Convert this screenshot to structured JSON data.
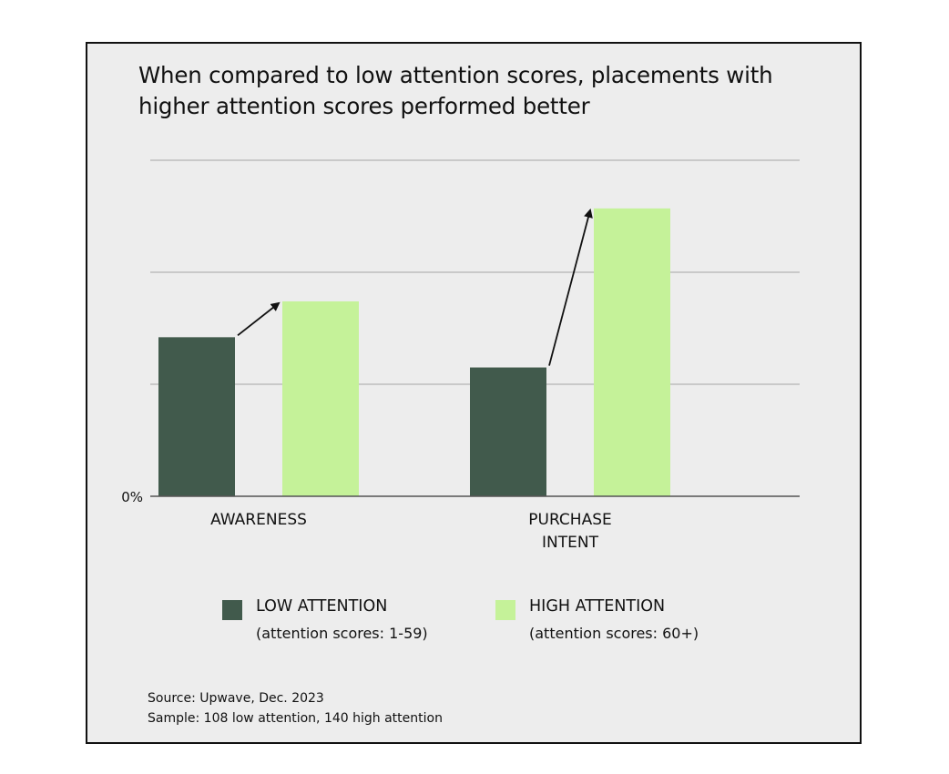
{
  "chart_data": {
    "type": "bar",
    "title": "When compared to low attention scores, placements with higher attention scores performed better",
    "categories": [
      [
        "AWARENESS"
      ],
      [
        "PURCHASE",
        "INTENT"
      ]
    ],
    "series": [
      {
        "name": "LOW ATTENTION",
        "detail": "(attention scores: 1-59)",
        "color": "#415a4c",
        "values": [
          1.42,
          1.15
        ]
      },
      {
        "name": "HIGH ATTENTION",
        "detail": "(attention scores: 60+)",
        "color": "#c5f299",
        "values": [
          1.74,
          2.57
        ]
      }
    ],
    "ylim": [
      0,
      3
    ],
    "gridlines": [
      1,
      2,
      3
    ],
    "y_tick_labels": [
      {
        "value": 0,
        "label": "0%"
      }
    ],
    "arrows": [
      {
        "category": 0,
        "from_series": 0,
        "to_series": 1
      },
      {
        "category": 1,
        "from_series": 0,
        "to_series": 1
      }
    ],
    "legend_position": "bottom",
    "grid": true
  },
  "footer": {
    "source": "Source: Upwave, Dec. 2023",
    "sample": "Sample: 108 low attention, 140  high attention"
  }
}
